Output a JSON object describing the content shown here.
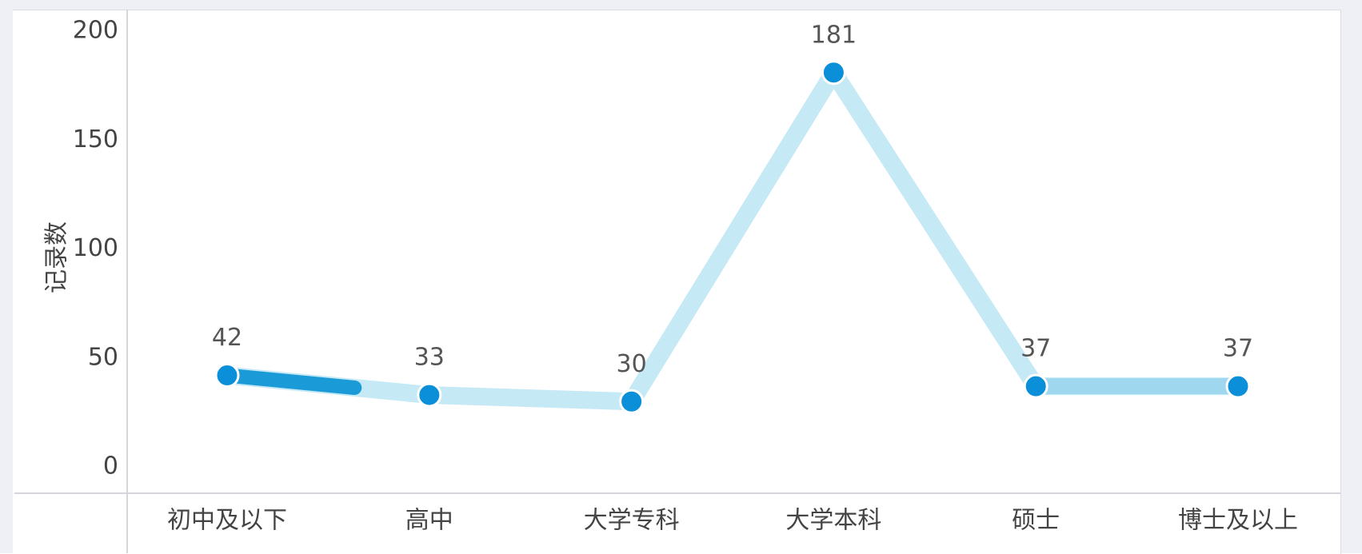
{
  "chart_data": {
    "type": "line",
    "categories": [
      "初中及以下",
      "高中",
      "大学专科",
      "大学本科",
      "硕士",
      "博士及以上"
    ],
    "values": [
      42,
      33,
      30,
      181,
      37,
      37
    ],
    "data_labels": [
      "42",
      "33",
      "30",
      "181",
      "37",
      "37"
    ],
    "ylabel": "记录数",
    "ylim": [
      0,
      200
    ],
    "yticks": [
      "0",
      "50",
      "100",
      "150",
      "200"
    ],
    "grid": false,
    "legend": "none",
    "colors": {
      "line": "#c6e9f6",
      "line_highlight": "#1a9bd7",
      "marker": "#0a8fd8",
      "marker_stroke": "#ffffff",
      "axis": "#d4d6db"
    }
  }
}
